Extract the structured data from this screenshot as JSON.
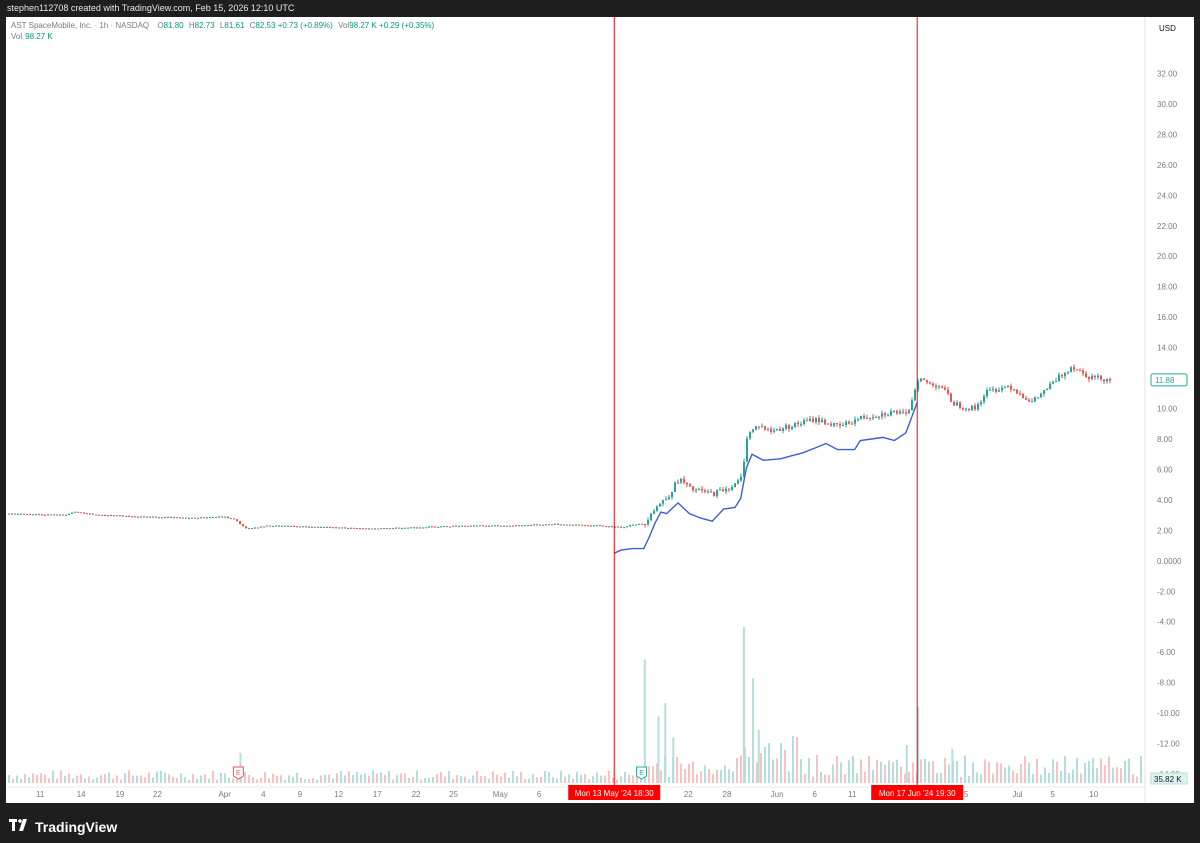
{
  "credit": "stephen112708 created with TradingView.com, Feb 15, 2026 12:10 UTC",
  "legend": {
    "symbol": "AST SpaceMobile, Inc. · 1h · NASDAQ",
    "o_key": "O",
    "o": "81.80",
    "h_key": "H",
    "h": "82.73",
    "l_key": "L",
    "l": "81.61",
    "c_key": "C",
    "c": "82.53",
    "change": "+0.73 (+0.89%)",
    "vol_key": "Vol",
    "vol": "98.27 K",
    "vol_change": "+0.29 (+0.35%)"
  },
  "vol_legend": {
    "label": "Vol",
    "value": "98.27 K"
  },
  "brand": {
    "name": "TradingView",
    "logo_icon": "tradingview-logo-icon"
  },
  "colors": {
    "up": "#26a69a",
    "down": "#ef5350",
    "line": "#3a5fd6",
    "marker": "#ff0000",
    "vol_up": "#b2dfdb",
    "vol_down": "#f7c3c2"
  },
  "chart_data": {
    "type": "candlestick",
    "symbol": "AST SpaceMobile, Inc.",
    "interval": "1h",
    "exchange": "NASDAQ",
    "currency": "USD",
    "y_axis": {
      "ylim": [
        -14,
        34
      ],
      "ticks": [
        "32.00",
        "30.00",
        "28.00",
        "26.00",
        "24.00",
        "22.00",
        "20.00",
        "18.00",
        "16.00",
        "14.00",
        "12.00",
        "10.00",
        "8.00",
        "6.00",
        "4.00",
        "2.00",
        "0.0000",
        "-2.00",
        "-4.00",
        "-6.00",
        "-8.00",
        "-10.00",
        "-12.00",
        "-14.00"
      ]
    },
    "x_ticks": [
      {
        "label": "11",
        "i": 0
      },
      {
        "label": "14",
        "i": 1
      },
      {
        "label": "19",
        "i": 2
      },
      {
        "label": "22",
        "i": 3
      },
      {
        "label": "Apr",
        "i": 4
      },
      {
        "label": "4",
        "i": 5
      },
      {
        "label": "9",
        "i": 6
      },
      {
        "label": "12",
        "i": 7
      },
      {
        "label": "17",
        "i": 8
      },
      {
        "label": "22",
        "i": 9
      },
      {
        "label": "25",
        "i": 10
      },
      {
        "label": "May",
        "i": 11
      },
      {
        "label": "6",
        "i": 12
      },
      {
        "label": "22",
        "i": 14
      },
      {
        "label": "28",
        "i": 15
      },
      {
        "label": "Jun",
        "i": 16
      },
      {
        "label": "6",
        "i": 17
      },
      {
        "label": "11",
        "i": 18
      },
      {
        "label": "25",
        "i": 19
      },
      {
        "label": "Jul",
        "i": 20
      },
      {
        "label": "5",
        "i": 21
      },
      {
        "label": "10",
        "i": 22
      }
    ],
    "x_tick_positions": [
      0.03,
      0.066,
      0.1,
      0.133,
      0.192,
      0.226,
      0.258,
      0.292,
      0.326,
      0.36,
      0.393,
      0.434,
      0.468,
      0.599,
      0.633,
      0.677,
      0.71,
      0.743,
      0.841,
      0.888,
      0.919,
      0.955
    ],
    "price_series": [
      [
        0.0,
        3.1
      ],
      [
        0.05,
        3.0
      ],
      [
        0.06,
        3.2
      ],
      [
        0.08,
        3.0
      ],
      [
        0.12,
        2.9
      ],
      [
        0.16,
        2.8
      ],
      [
        0.19,
        2.9
      ],
      [
        0.2,
        2.7
      ],
      [
        0.21,
        2.1
      ],
      [
        0.23,
        2.3
      ],
      [
        0.28,
        2.2
      ],
      [
        0.32,
        2.1
      ],
      [
        0.36,
        2.2
      ],
      [
        0.4,
        2.3
      ],
      [
        0.44,
        2.3
      ],
      [
        0.48,
        2.4
      ],
      [
        0.52,
        2.3
      ],
      [
        0.54,
        2.2
      ],
      [
        0.55,
        2.4
      ],
      [
        0.56,
        2.4
      ],
      [
        0.565,
        3.2
      ],
      [
        0.58,
        4.2
      ],
      [
        0.59,
        5.4
      ],
      [
        0.6,
        4.7
      ],
      [
        0.62,
        4.4
      ],
      [
        0.64,
        5.0
      ],
      [
        0.645,
        5.5
      ],
      [
        0.65,
        8.3
      ],
      [
        0.66,
        8.9
      ],
      [
        0.67,
        8.5
      ],
      [
        0.69,
        8.9
      ],
      [
        0.71,
        9.3
      ],
      [
        0.73,
        8.8
      ],
      [
        0.75,
        9.4
      ],
      [
        0.78,
        9.8
      ],
      [
        0.79,
        9.5
      ],
      [
        0.8,
        12.0
      ],
      [
        0.81,
        11.6
      ],
      [
        0.82,
        11.5
      ],
      [
        0.83,
        10.4
      ],
      [
        0.84,
        10.1
      ],
      [
        0.85,
        10.0
      ],
      [
        0.86,
        11.1
      ],
      [
        0.88,
        11.5
      ],
      [
        0.9,
        10.4
      ],
      [
        0.92,
        11.8
      ],
      [
        0.935,
        12.8
      ],
      [
        0.95,
        12.1
      ],
      [
        0.97,
        11.88
      ]
    ],
    "blue_line": [
      [
        0.534,
        0.5
      ],
      [
        0.54,
        0.7
      ],
      [
        0.55,
        0.8
      ],
      [
        0.56,
        0.8
      ],
      [
        0.565,
        1.6
      ],
      [
        0.57,
        2.5
      ],
      [
        0.575,
        3.2
      ],
      [
        0.58,
        3.1
      ],
      [
        0.59,
        3.8
      ],
      [
        0.6,
        3.1
      ],
      [
        0.61,
        2.8
      ],
      [
        0.62,
        2.6
      ],
      [
        0.63,
        3.4
      ],
      [
        0.64,
        3.5
      ],
      [
        0.645,
        4.1
      ],
      [
        0.65,
        6.1
      ],
      [
        0.655,
        7.0
      ],
      [
        0.665,
        6.6
      ],
      [
        0.68,
        6.7
      ],
      [
        0.69,
        6.9
      ],
      [
        0.7,
        7.1
      ],
      [
        0.71,
        7.4
      ],
      [
        0.72,
        7.7
      ],
      [
        0.73,
        7.3
      ],
      [
        0.745,
        7.3
      ],
      [
        0.75,
        7.9
      ],
      [
        0.76,
        8.0
      ],
      [
        0.77,
        8.1
      ],
      [
        0.78,
        7.9
      ],
      [
        0.79,
        8.4
      ],
      [
        0.797,
        9.8
      ],
      [
        0.8,
        10.4
      ]
    ],
    "volume_spikes": [
      [
        0.205,
        0.16
      ],
      [
        0.56,
        0.65
      ],
      [
        0.572,
        0.35
      ],
      [
        0.578,
        0.42
      ],
      [
        0.585,
        0.24
      ],
      [
        0.647,
        0.82
      ],
      [
        0.655,
        0.55
      ],
      [
        0.66,
        0.28
      ],
      [
        0.8,
        0.4
      ],
      [
        0.79,
        0.2
      ],
      [
        0.83,
        0.18
      ]
    ],
    "markers": [
      {
        "label": "Mon 13 May '24",
        "time": "18:30",
        "pos": 0.534
      },
      {
        "label": "Mon 17 Jun '24",
        "time": "19:30",
        "pos": 0.8
      }
    ],
    "earnings": [
      {
        "label": "E",
        "pos": 0.204
      },
      {
        "label": "E",
        "pos": 0.558
      }
    ],
    "last_price": "11.88",
    "last_volume": "35.82 K",
    "currency_label": "USD"
  }
}
